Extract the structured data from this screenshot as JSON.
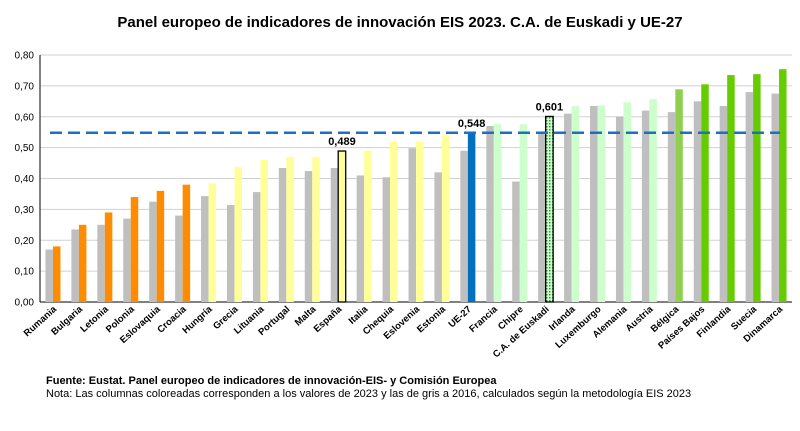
{
  "chart_data": {
    "type": "bar",
    "title": "Panel europeo de indicadores de innovación EIS 2023. C.A. de Euskadi y UE-27",
    "categories": [
      "Rumania",
      "Bulgaria",
      "Letonia",
      "Polonia",
      "Eslovaquia",
      "Croacia",
      "Hungría",
      "Grecia",
      "Lituania",
      "Portugal",
      "Malta",
      "España",
      "Italia",
      "Chequia",
      "Eslovenia",
      "Estonia",
      "UE-27",
      "Francia",
      "Chipre",
      "C.A. de Euskadi",
      "Irlanda",
      "Luxemburgo",
      "Alemania",
      "Austria",
      "Bélgica",
      "Países Bajos",
      "Finlandia",
      "Suecia",
      "Dinamarca"
    ],
    "series": [
      {
        "color": "#bfbfbf",
        "values": [
          0.17,
          0.235,
          0.25,
          0.27,
          0.325,
          0.28,
          0.343,
          0.314,
          0.356,
          0.434,
          0.424,
          0.434,
          0.41,
          0.404,
          0.498,
          0.42,
          0.49,
          0.57,
          0.39,
          0.55,
          0.61,
          0.635,
          0.6,
          0.62,
          0.615,
          0.65,
          0.635,
          0.68,
          0.675
        ]
      },
      {
        "colors": [
          "#ff8c00",
          "#ff8c00",
          "#ff8c00",
          "#ff8c00",
          "#ff8c00",
          "#ff8c00",
          "#ffff99",
          "#ffff99",
          "#ffff99",
          "#ffff99",
          "#ffff99",
          "#ffff99",
          "#ffff99",
          "#ffff99",
          "#ffff99",
          "#ffff99",
          "#0070c0",
          "#ccffcc",
          "#ccffcc",
          "#66bb55",
          "#ccffcc",
          "#ccffcc",
          "#ccffcc",
          "#ccffcc",
          "#8fd14f",
          "#66cc00",
          "#66cc00",
          "#66cc00",
          "#66cc00"
        ],
        "values": [
          0.18,
          0.25,
          0.29,
          0.34,
          0.36,
          0.38,
          0.385,
          0.437,
          0.46,
          0.47,
          0.47,
          0.489,
          0.49,
          0.52,
          0.52,
          0.54,
          0.548,
          0.576,
          0.576,
          0.601,
          0.634,
          0.637,
          0.647,
          0.657,
          0.689,
          0.705,
          0.735,
          0.738,
          0.754
        ],
        "value_labels": [
          null,
          null,
          null,
          null,
          null,
          null,
          null,
          null,
          null,
          null,
          null,
          "0,489",
          null,
          null,
          null,
          null,
          "0,548",
          null,
          null,
          "0,601",
          null,
          null,
          null,
          null,
          null,
          null,
          null,
          null,
          null
        ],
        "outlined": [
          11,
          19
        ]
      }
    ],
    "reference_line": {
      "category": "UE-27",
      "color": "#1f6fc0"
    },
    "ylim": [
      0,
      0.8
    ],
    "yticks": [
      {
        "value": 0,
        "label": "0,00"
      },
      {
        "value": 0.1,
        "label": "0,10"
      },
      {
        "value": 0.2,
        "label": "0,20"
      },
      {
        "value": 0.3,
        "label": "0,30"
      },
      {
        "value": 0.4,
        "label": "0,40"
      },
      {
        "value": 0.5,
        "label": "0,50"
      },
      {
        "value": 0.6,
        "label": "0,60"
      },
      {
        "value": 0.7,
        "label": "0,70"
      },
      {
        "value": 0.8,
        "label": "0,80"
      }
    ],
    "grid": true,
    "source": "Fuente: Eustat. Panel europeo de indicadores de innovación-EIS- y Comisión Europea",
    "note": "Nota: Las columnas coloreadas corresponden a los valores de 2023 y las de gris a 2016, calculados según la metodología  EIS 2023"
  }
}
